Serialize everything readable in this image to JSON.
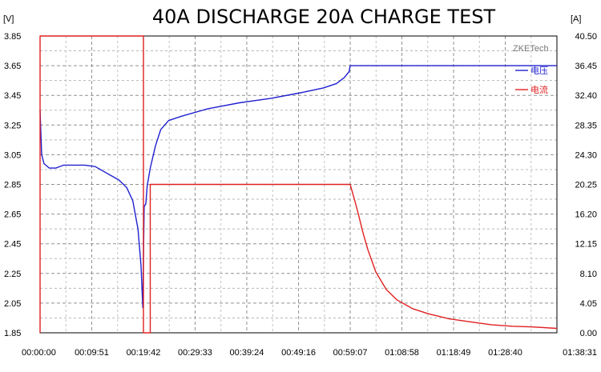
{
  "chart_data": {
    "type": "line",
    "title": "40A DISCHARGE 20A CHARGE TEST",
    "watermark": "ZKETech",
    "left_axis": {
      "unit": "[V]",
      "ticks": [
        "3.85",
        "3.65",
        "3.45",
        "3.25",
        "3.05",
        "2.85",
        "2.65",
        "2.45",
        "2.25",
        "2.05",
        "1.85"
      ],
      "ylim": [
        1.85,
        3.85
      ]
    },
    "right_axis": {
      "unit": "[A]",
      "ticks": [
        "40.50",
        "36.45",
        "32.40",
        "28.35",
        "24.30",
        "20.25",
        "16.20",
        "12.15",
        "8.10",
        "4.05",
        "0.00"
      ],
      "ylim": [
        0.0,
        40.5
      ]
    },
    "x_axis": {
      "ticks": [
        "00:00:00",
        "00:09:51",
        "00:19:42",
        "00:29:33",
        "00:39:24",
        "00:49:16",
        "00:59:07",
        "01:08:58",
        "01:18:49",
        "01:28:40",
        "01:38:31"
      ]
    },
    "grid": true,
    "legend_position": "top-right",
    "series": [
      {
        "name": "电压",
        "color": "#2020d0",
        "axis": "left",
        "x": [
          "00:00:00",
          "00:00:18",
          "00:00:45",
          "00:01:45",
          "00:03:00",
          "00:04:30",
          "00:06:30",
          "00:08:30",
          "00:10:30",
          "00:12:00",
          "00:13:30",
          "00:15:00",
          "00:16:30",
          "00:17:40",
          "00:18:40",
          "00:19:15",
          "00:19:35",
          "00:19:50",
          "00:20:00",
          "00:20:10",
          "00:20:25",
          "00:21:00",
          "00:22:00",
          "00:23:00",
          "00:24:30",
          "00:27:00",
          "00:32:00",
          "00:38:00",
          "00:44:00",
          "00:50:00",
          "00:54:00",
          "00:56:30",
          "00:58:00",
          "00:58:55",
          "00:59:07",
          "01:38:31"
        ],
        "y": [
          3.35,
          3.05,
          2.99,
          2.96,
          2.96,
          2.98,
          2.98,
          2.98,
          2.97,
          2.94,
          2.91,
          2.88,
          2.83,
          2.74,
          2.55,
          2.3,
          2.02,
          2.7,
          2.71,
          2.72,
          2.84,
          2.96,
          3.11,
          3.22,
          3.28,
          3.31,
          3.36,
          3.4,
          3.43,
          3.47,
          3.5,
          3.53,
          3.57,
          3.61,
          3.65,
          3.65
        ]
      },
      {
        "name": "电流",
        "color": "#e02020",
        "axis": "right",
        "x": [
          "00:00:00",
          "00:00:00",
          "00:19:42",
          "00:19:42",
          "00:21:00",
          "00:21:00",
          "00:59:07",
          "00:60:00",
          "01:00:40",
          "01:01:30",
          "01:02:30",
          "01:04:00",
          "01:06:00",
          "01:08:00",
          "01:11:00",
          "01:14:00",
          "01:18:00",
          "01:22:00",
          "01:26:00",
          "01:30:00",
          "01:34:00",
          "01:38:31"
        ],
        "y": [
          0.0,
          40.5,
          40.5,
          0.0,
          0.0,
          20.25,
          20.25,
          18.0,
          16.2,
          13.8,
          11.3,
          8.3,
          5.9,
          4.5,
          3.3,
          2.6,
          1.9,
          1.5,
          1.1,
          0.9,
          0.8,
          0.6
        ]
      }
    ]
  }
}
